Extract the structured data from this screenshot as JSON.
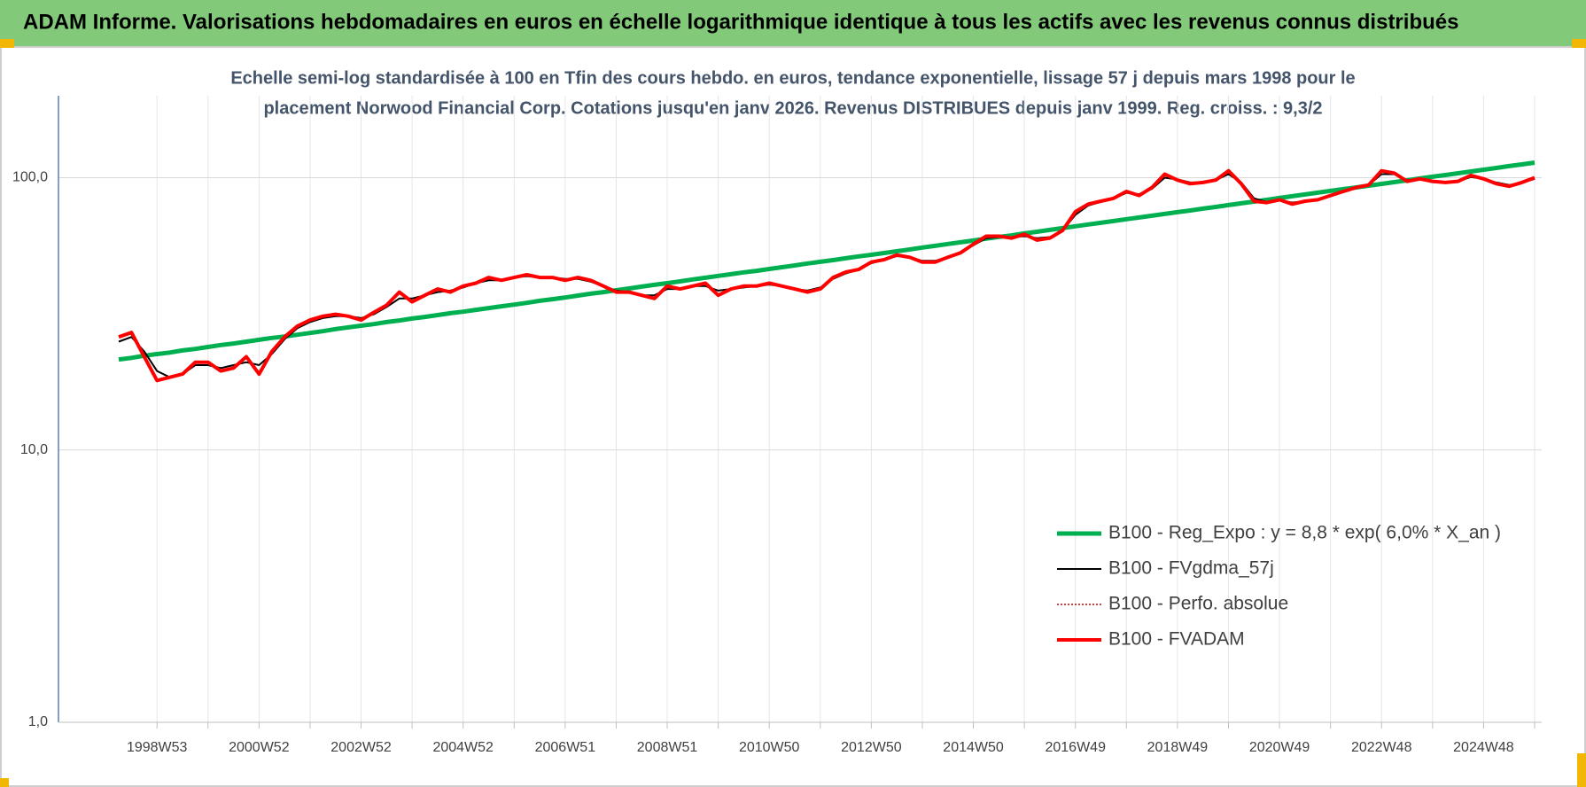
{
  "chart_data": {
    "type": "line",
    "title": "ADAM Informe. Valorisations hebdomadaires en euros en échelle logarithmique identique à tous les actifs avec les revenus connus distribués",
    "subtitle": [
      "Echelle semi-log standardisée à 100 en Tfin des cours hebdo. en euros, tendance exponentielle, lissage 57 j depuis mars 1998 pour le",
      "placement Norwood Financial Corp. Cotations jusqu'en janv 2026.  Revenus DISTRIBUES depuis janv 1999. Reg. croiss. : 9,3/2"
    ],
    "log_scale": true,
    "grid": true,
    "legend_position": "lower right",
    "ylim": [
      1,
      200
    ],
    "yticks": [
      {
        "value": 1,
        "label": "1,0"
      },
      {
        "value": 10,
        "label": "10,0"
      },
      {
        "value": 100,
        "label": "100,0"
      }
    ],
    "categories": [
      null,
      null,
      null,
      "1998W53",
      null,
      null,
      null,
      null,
      null,
      null,
      null,
      "2000W52",
      null,
      null,
      null,
      null,
      null,
      null,
      null,
      "2002W52",
      null,
      null,
      null,
      null,
      null,
      null,
      null,
      "2004W52",
      null,
      null,
      null,
      null,
      null,
      null,
      null,
      "2006W51",
      null,
      null,
      null,
      null,
      null,
      null,
      null,
      "2008W51",
      null,
      null,
      null,
      null,
      null,
      null,
      null,
      "2010W50",
      null,
      null,
      null,
      null,
      null,
      null,
      null,
      "2012W50",
      null,
      null,
      null,
      null,
      null,
      null,
      null,
      "2014W50",
      null,
      null,
      null,
      null,
      null,
      null,
      null,
      "2016W49",
      null,
      null,
      null,
      null,
      null,
      null,
      null,
      "2018W49",
      null,
      null,
      null,
      null,
      null,
      null,
      null,
      "2020W49",
      null,
      null,
      null,
      null,
      null,
      null,
      null,
      "2022W48",
      null,
      null,
      null,
      null,
      null,
      null,
      null,
      "2024W48",
      null,
      null,
      null,
      null
    ],
    "series": [
      {
        "name": "B100 - Reg_Expo : y = 8,8 * exp( 6,0% *  X_an )",
        "color": "#00b050",
        "width": 5,
        "dash": "none",
        "values": [
          21.5,
          21.8,
          22.2,
          22.5,
          22.8,
          23.2,
          23.5,
          23.9,
          24.3,
          24.6,
          25.0,
          25.4,
          25.8,
          26.1,
          26.5,
          26.9,
          27.3,
          27.8,
          28.2,
          28.6,
          29.0,
          29.5,
          29.9,
          30.4,
          30.8,
          31.3,
          31.8,
          32.2,
          32.7,
          33.2,
          33.7,
          34.2,
          34.7,
          35.3,
          35.8,
          36.3,
          36.9,
          37.5,
          38.0,
          38.6,
          39.2,
          39.8,
          40.4,
          41.0,
          41.6,
          42.3,
          42.9,
          43.6,
          44.2,
          44.9,
          45.5,
          46.2,
          46.9,
          47.6,
          48.4,
          49.1,
          49.8,
          50.6,
          51.4,
          52.1,
          52.9,
          53.7,
          54.5,
          55.4,
          56.2,
          57.1,
          57.9,
          58.8,
          59.7,
          60.6,
          61.4,
          62.4,
          63.3,
          64.3,
          65.3,
          66.3,
          67.3,
          68.3,
          69.3,
          70.4,
          71.4,
          72.5,
          73.6,
          74.7,
          75.8,
          77.0,
          78.1,
          79.3,
          80.5,
          81.7,
          82.9,
          84.2,
          85.5,
          86.8,
          88.1,
          89.4,
          90.8,
          92.1,
          93.5,
          94.9,
          96.3,
          97.8,
          99.3,
          100.8,
          102.3,
          103.8,
          105.4,
          107.0,
          108.6,
          110.3,
          111.9,
          113.6
        ]
      },
      {
        "name": "B100 - FVgdma_57j",
        "color": "#000000",
        "width": 2,
        "dash": "none",
        "values": [
          25,
          26,
          23,
          19.5,
          18.5,
          19,
          20.5,
          20.5,
          20,
          20.5,
          21,
          20.5,
          22.5,
          25.5,
          28,
          29.5,
          30.5,
          31,
          31,
          30.5,
          31.5,
          33.5,
          36,
          36,
          37,
          38,
          38.5,
          39.5,
          41,
          42,
          42,
          43,
          43.5,
          43,
          43,
          42.5,
          42.5,
          41.5,
          40,
          38.5,
          38,
          37,
          37,
          39,
          39,
          40,
          40,
          38.5,
          39,
          39.5,
          40,
          40.5,
          40,
          39,
          38.5,
          39.5,
          42.5,
          44.5,
          46,
          48.5,
          50,
          51.5,
          51,
          49.5,
          49.5,
          51,
          53,
          56.5,
          60,
          60.5,
          60.5,
          61,
          60,
          60.5,
          64,
          73,
          79,
          81.5,
          84,
          88,
          87,
          91,
          100,
          98.5,
          96,
          96,
          98,
          103,
          96,
          84,
          81.5,
          82.5,
          81,
          82,
          83,
          85.5,
          88.5,
          91.5,
          94,
          103,
          103,
          98,
          98.5,
          97.5,
          96.5,
          97,
          100.5,
          99,
          96,
          94,
          95.5,
          99
        ]
      },
      {
        "name": "B100 - Perfo. absolue",
        "color": "#c00000",
        "width": 1.5,
        "dash": "2 2",
        "values": [
          26,
          27,
          22,
          18,
          18.5,
          19,
          21,
          21,
          19.5,
          20,
          22,
          19,
          23,
          26,
          28.5,
          30,
          31,
          31.5,
          31,
          30,
          32,
          34,
          38,
          35,
          37,
          39,
          38,
          40,
          41,
          43,
          42,
          43,
          44,
          43,
          43,
          42,
          43,
          42,
          40,
          38,
          38,
          37,
          36,
          40,
          39,
          40,
          41,
          37,
          39,
          40,
          40,
          41,
          40,
          39,
          38,
          39,
          43,
          45,
          46,
          49,
          50,
          52,
          51,
          49,
          49,
          51,
          53,
          57,
          61,
          61,
          60,
          62,
          59,
          60,
          64,
          75,
          80,
          82,
          84,
          89,
          86,
          92,
          103,
          98,
          95,
          96,
          98,
          106,
          95,
          82,
          81,
          83,
          80,
          82,
          83,
          86,
          89,
          92,
          94,
          106,
          104,
          97,
          99,
          97,
          96,
          97,
          102,
          99,
          95,
          93,
          96,
          100
        ]
      },
      {
        "name": "B100 - FVADAM",
        "color": "#ff0000",
        "width": 4,
        "dash": "none",
        "values": [
          26,
          27,
          22,
          18,
          18.5,
          19,
          21,
          21,
          19.5,
          20,
          22,
          19,
          23,
          26,
          28.5,
          30,
          31,
          31.5,
          31,
          30,
          32,
          34,
          38,
          35,
          37,
          39,
          38,
          40,
          41,
          43,
          42,
          43,
          44,
          43,
          43,
          42,
          43,
          42,
          40,
          38,
          38,
          37,
          36,
          40,
          39,
          40,
          41,
          37,
          39,
          40,
          40,
          41,
          40,
          39,
          38,
          39,
          43,
          45,
          46,
          49,
          50,
          52,
          51,
          49,
          49,
          51,
          53,
          57,
          61,
          61,
          60,
          62,
          59,
          60,
          64,
          75,
          80,
          82,
          84,
          89,
          86,
          92,
          103,
          98,
          95,
          96,
          98,
          106,
          95,
          82,
          81,
          83,
          80,
          82,
          83,
          86,
          89,
          92,
          94,
          106,
          104,
          97,
          99,
          97,
          96,
          97,
          102,
          99,
          95,
          93,
          96,
          100
        ]
      }
    ]
  }
}
